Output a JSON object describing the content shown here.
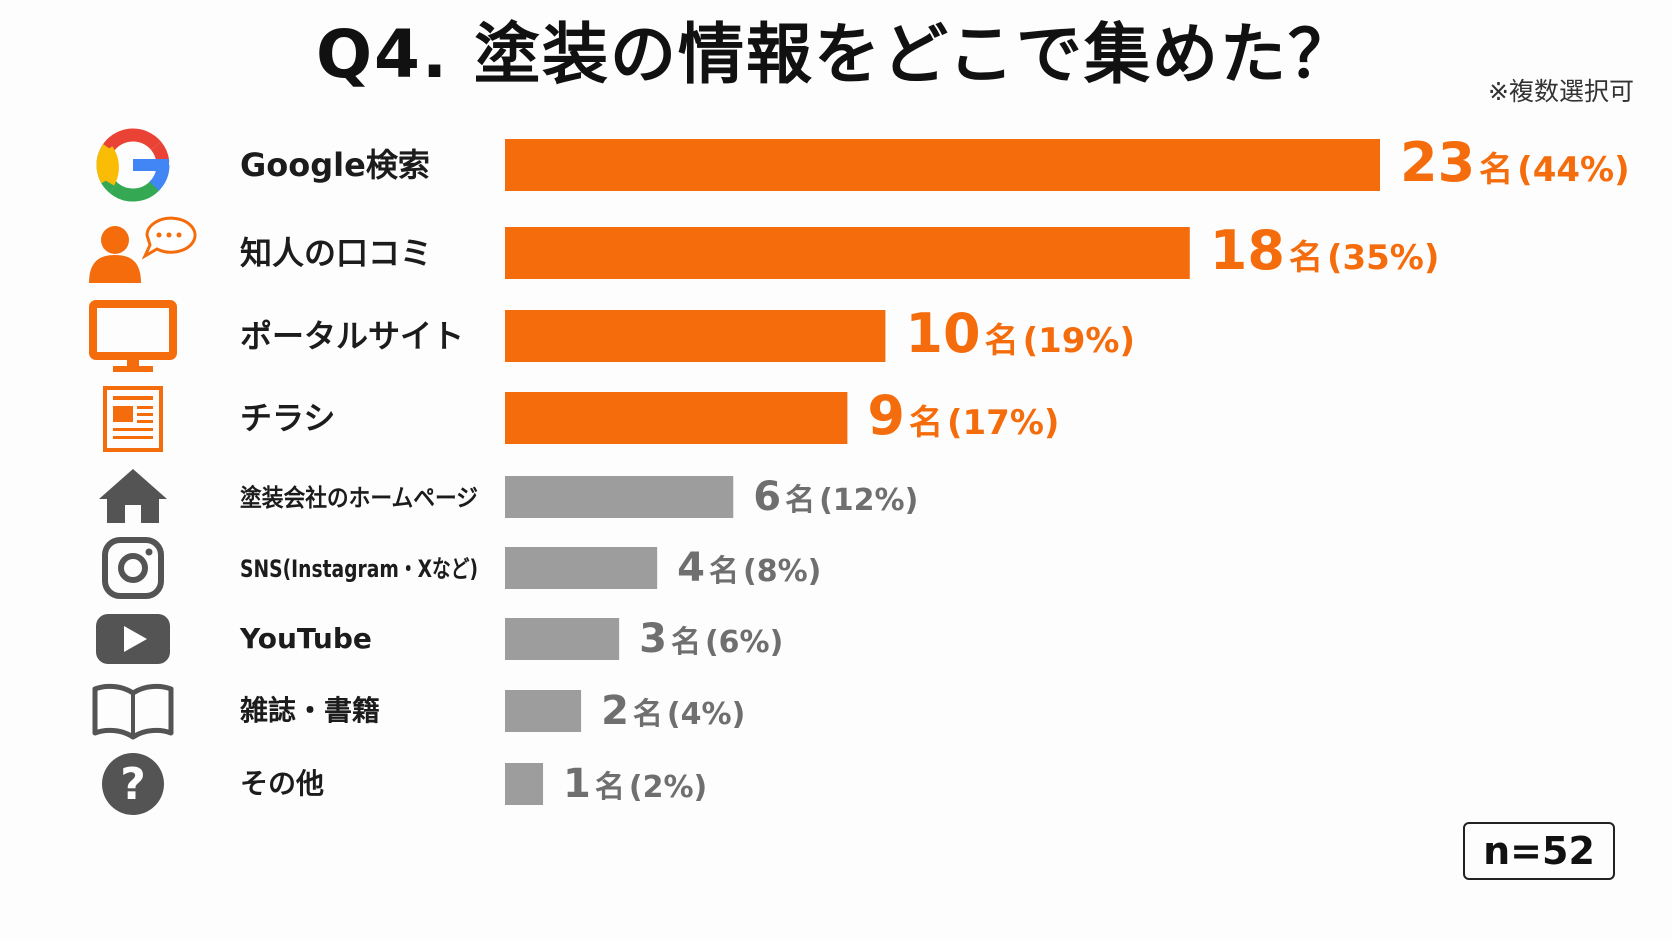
{
  "title": "Q4. 塗装の情報をどこで集めた？",
  "note": "※複数選択可",
  "sample": "n=52",
  "colors": {
    "highlight": "#f56c0c",
    "normal": "#9d9d9d",
    "icon_dark": "#545454"
  },
  "chart_data": {
    "type": "bar",
    "orientation": "horizontal",
    "categories": [
      "Google検索",
      "知人の口コミ",
      "ポータルサイト",
      "チラシ",
      "塗装会社のホームページ",
      "SNS(Instagram・Xなど)",
      "YouTube",
      "雑誌・書籍",
      "その他"
    ],
    "values": [
      23,
      18,
      10,
      9,
      6,
      4,
      3,
      2,
      1
    ],
    "value_unit": "名",
    "percent_labels": [
      "(44%)",
      "(35%)",
      "(19%)",
      "(17%)",
      "(12%)",
      "(8%)",
      "(6%)",
      "(4%)",
      "(2%)"
    ],
    "highlighted": [
      true,
      true,
      true,
      true,
      false,
      false,
      false,
      false,
      false
    ],
    "icons": [
      "google-icon",
      "people-chat-icon",
      "monitor-icon",
      "flyer-icon",
      "home-icon",
      "instagram-icon",
      "youtube-icon",
      "book-icon",
      "question-icon"
    ],
    "xlim": [
      0,
      23
    ]
  }
}
